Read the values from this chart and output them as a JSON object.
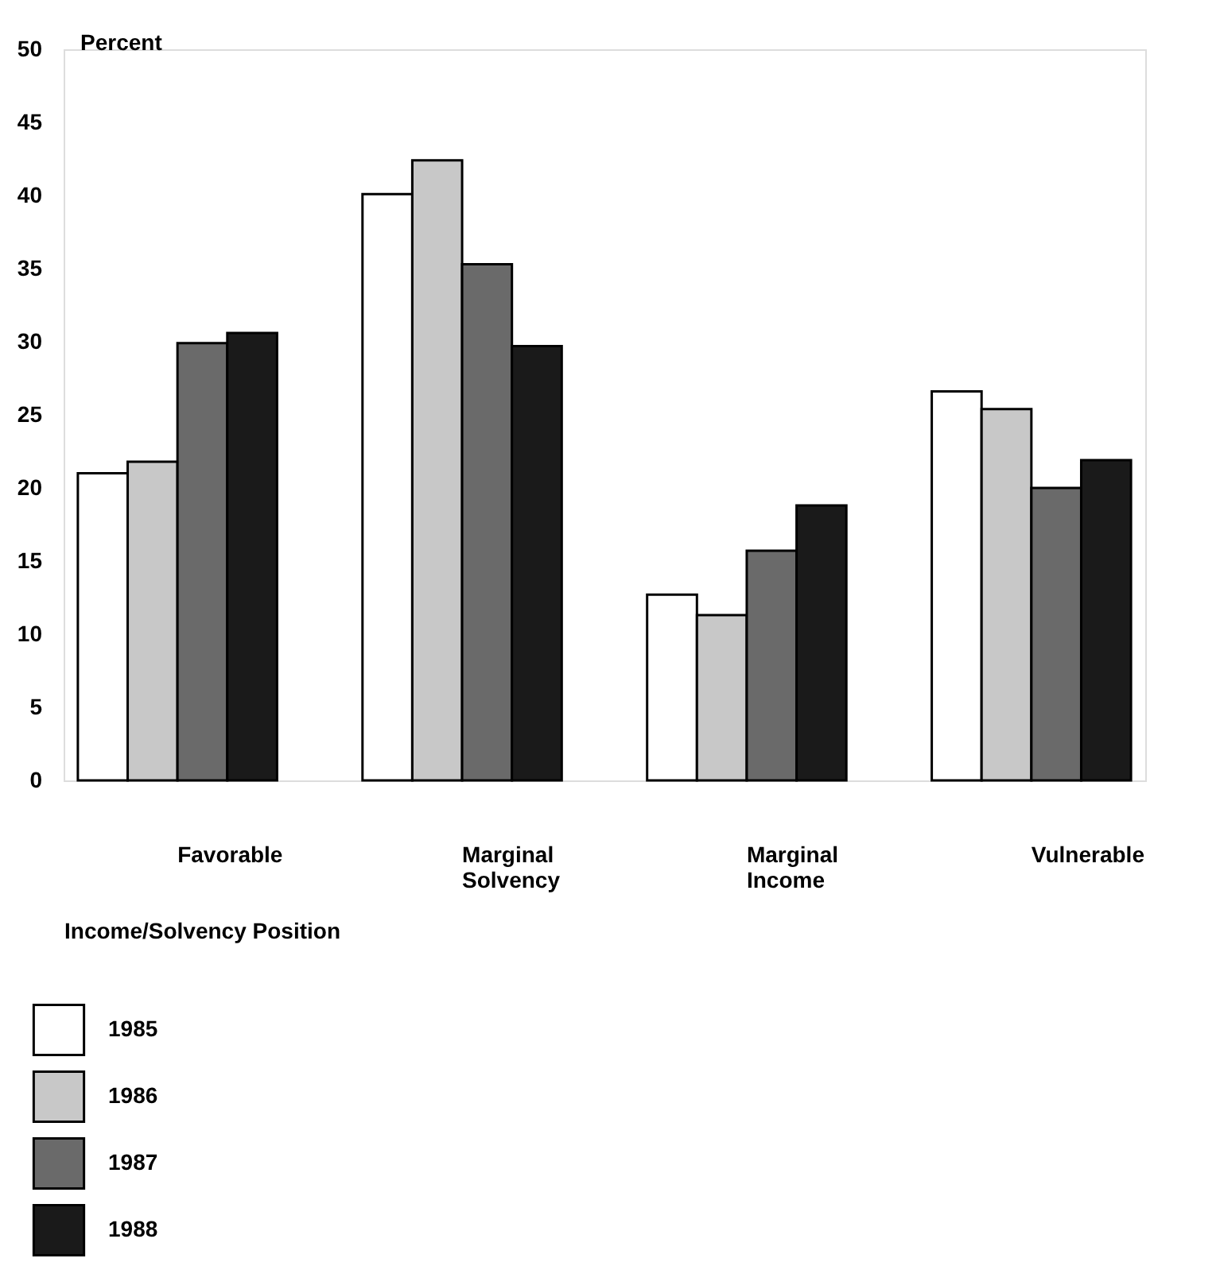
{
  "chart_data": {
    "type": "bar",
    "xlabel": "Income/Solvency Position",
    "ylabel": "Percent",
    "categories": [
      "Favorable",
      "Marginal Solvency",
      "Marginal Income",
      "Vulnerable"
    ],
    "series": [
      {
        "name": "1985",
        "color": "#ffffff",
        "values": [
          21.0,
          40.1,
          12.7,
          26.6
        ]
      },
      {
        "name": "1986",
        "color": "#c8c8c8",
        "values": [
          21.8,
          42.4,
          11.3,
          25.4
        ]
      },
      {
        "name": "1987",
        "color": "#6a6a6a",
        "values": [
          29.9,
          35.3,
          15.7,
          20.0
        ]
      },
      {
        "name": "1988",
        "color": "#1a1a1a",
        "values": [
          30.6,
          29.7,
          18.8,
          21.9
        ]
      }
    ],
    "ylim": [
      0,
      50
    ],
    "yticks": [
      0,
      5,
      10,
      15,
      20,
      25,
      30,
      35,
      40,
      45,
      50
    ],
    "grid": false,
    "legend": "bottom left"
  }
}
